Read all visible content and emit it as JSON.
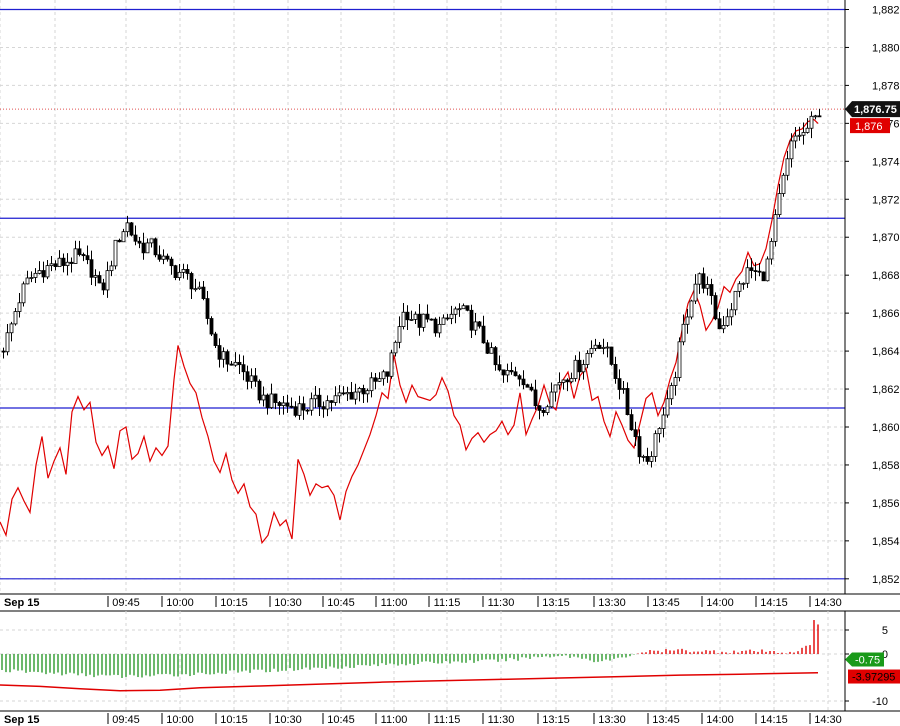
{
  "colors": {
    "level_line": "#1f1fd0",
    "up_candle": "#ffffff",
    "down_candle": "#000000",
    "overlay_line": "#e00000",
    "positive_hist": "#e00000",
    "negative_hist": "#2e9a2e",
    "grid": "#d6d6d6",
    "last_price_tag": "#111111",
    "overlay_tag": "#e00000",
    "osc_tag": "#1a9a1a"
  },
  "chart_data": [
    {
      "type": "candlestick",
      "date_label": "Sep 15",
      "x_ticks": [
        "09:45",
        "10:00",
        "10:15",
        "10:30",
        "10:45",
        "11:00",
        "11:15",
        "11:30",
        "13:15",
        "13:30",
        "13:45",
        "14:00",
        "14:15",
        "14:30"
      ],
      "y_ticks": [
        "1,852",
        "1,854",
        "1,856",
        "1,858",
        "1,860",
        "1,862",
        "1,864",
        "1,866",
        "1,868",
        "1,870",
        "1,872",
        "1,874",
        "1,876",
        "1,878",
        "1,880",
        "1,882"
      ],
      "ylim": [
        1851.2,
        1882.5
      ],
      "grid": true,
      "horizontal_levels": [
        1882,
        1871,
        1861,
        1852
      ],
      "last_price": 1876.75,
      "last_price_label": "1,876.75",
      "overlay_label": "1,876",
      "close_path": [
        [
          0,
          1864
        ],
        [
          8,
          1865
        ],
        [
          16,
          1866.5
        ],
        [
          24,
          1867.5
        ],
        [
          32,
          1868
        ],
        [
          40,
          1868.3
        ],
        [
          50,
          1868.5
        ],
        [
          60,
          1868.6
        ],
        [
          68,
          1868.8
        ],
        [
          76,
          1869
        ],
        [
          84,
          1868.6
        ],
        [
          92,
          1868.2
        ],
        [
          98,
          1867.2
        ],
        [
          104,
          1867.6
        ],
        [
          110,
          1868.8
        ],
        [
          116,
          1869.8
        ],
        [
          120,
          1870.3
        ],
        [
          126,
          1870.7
        ],
        [
          132,
          1870
        ],
        [
          140,
          1869.5
        ],
        [
          148,
          1869.6
        ],
        [
          156,
          1869.2
        ],
        [
          164,
          1868.6
        ],
        [
          172,
          1868.3
        ],
        [
          180,
          1868.1
        ],
        [
          188,
          1867.8
        ],
        [
          196,
          1867.2
        ],
        [
          202,
          1866.4
        ],
        [
          208,
          1865.4
        ],
        [
          214,
          1864.3
        ],
        [
          222,
          1863.6
        ],
        [
          230,
          1863.4
        ],
        [
          238,
          1863.2
        ],
        [
          246,
          1862.6
        ],
        [
          254,
          1862
        ],
        [
          262,
          1861.5
        ],
        [
          270,
          1861.3
        ],
        [
          280,
          1861.2
        ],
        [
          290,
          1861.1
        ],
        [
          300,
          1861
        ],
        [
          310,
          1861.2
        ],
        [
          320,
          1861.3
        ],
        [
          330,
          1861.4
        ],
        [
          340,
          1861.6
        ],
        [
          350,
          1861.8
        ],
        [
          360,
          1862
        ],
        [
          370,
          1862.2
        ],
        [
          378,
          1862.4
        ],
        [
          386,
          1862.8
        ],
        [
          392,
          1864
        ],
        [
          398,
          1865.5
        ],
        [
          404,
          1866.2
        ],
        [
          410,
          1865.8
        ],
        [
          416,
          1865.5
        ],
        [
          424,
          1865.6
        ],
        [
          432,
          1865.4
        ],
        [
          440,
          1865.2
        ],
        [
          448,
          1865.8
        ],
        [
          456,
          1866.2
        ],
        [
          464,
          1865.9
        ],
        [
          472,
          1865.4
        ],
        [
          480,
          1864.8
        ],
        [
          488,
          1864
        ],
        [
          494,
          1863.2
        ],
        [
          500,
          1862.6
        ],
        [
          508,
          1862.8
        ],
        [
          516,
          1862.9
        ],
        [
          524,
          1862.5
        ],
        [
          530,
          1861.6
        ],
        [
          536,
          1861
        ],
        [
          542,
          1861.2
        ],
        [
          550,
          1861.8
        ],
        [
          556,
          1862.4
        ],
        [
          564,
          1862.7
        ],
        [
          572,
          1863
        ],
        [
          580,
          1863.4
        ],
        [
          588,
          1864
        ],
        [
          596,
          1864.6
        ],
        [
          602,
          1864.3
        ],
        [
          608,
          1863.6
        ],
        [
          614,
          1862.8
        ],
        [
          620,
          1862
        ],
        [
          626,
          1860.8
        ],
        [
          632,
          1859.8
        ],
        [
          640,
          1858.5
        ],
        [
          646,
          1858.3
        ],
        [
          652,
          1859
        ],
        [
          658,
          1860.2
        ],
        [
          664,
          1860.8
        ],
        [
          670,
          1861.8
        ],
        [
          676,
          1863.5
        ],
        [
          682,
          1865.2
        ],
        [
          688,
          1866.6
        ],
        [
          694,
          1867.6
        ],
        [
          700,
          1867.9
        ],
        [
          706,
          1867.2
        ],
        [
          712,
          1866.2
        ],
        [
          718,
          1865.2
        ],
        [
          724,
          1865.8
        ],
        [
          730,
          1866.4
        ],
        [
          736,
          1867.2
        ],
        [
          742,
          1867.8
        ],
        [
          748,
          1868.3
        ],
        [
          754,
          1868.1
        ],
        [
          760,
          1867.9
        ],
        [
          766,
          1868.6
        ],
        [
          772,
          1870.2
        ],
        [
          778,
          1872
        ],
        [
          784,
          1873.5
        ],
        [
          790,
          1874.8
        ],
        [
          796,
          1875.5
        ],
        [
          802,
          1875.4
        ],
        [
          808,
          1875.9
        ],
        [
          814,
          1876.2
        ],
        [
          818,
          1876.75
        ]
      ],
      "overlay_series": [
        [
          0,
          1855
        ],
        [
          6,
          1854.3
        ],
        [
          12,
          1856.2
        ],
        [
          18,
          1856.8
        ],
        [
          24,
          1856.1
        ],
        [
          30,
          1855.5
        ],
        [
          36,
          1858
        ],
        [
          42,
          1859.5
        ],
        [
          48,
          1857.3
        ],
        [
          54,
          1858.2
        ],
        [
          60,
          1858.9
        ],
        [
          66,
          1857.5
        ],
        [
          72,
          1860.8
        ],
        [
          78,
          1861.6
        ],
        [
          84,
          1860.9
        ],
        [
          90,
          1861.3
        ],
        [
          96,
          1859.2
        ],
        [
          102,
          1858.5
        ],
        [
          108,
          1859
        ],
        [
          114,
          1857.8
        ],
        [
          120,
          1859.8
        ],
        [
          126,
          1860
        ],
        [
          132,
          1858.3
        ],
        [
          138,
          1858.6
        ],
        [
          144,
          1859.5
        ],
        [
          150,
          1858.2
        ],
        [
          156,
          1858.9
        ],
        [
          162,
          1858.5
        ],
        [
          168,
          1859
        ],
        [
          174,
          1862.5
        ],
        [
          178,
          1864.3
        ],
        [
          184,
          1863.2
        ],
        [
          190,
          1862.3
        ],
        [
          196,
          1861.8
        ],
        [
          202,
          1860.5
        ],
        [
          208,
          1859.5
        ],
        [
          214,
          1858.2
        ],
        [
          220,
          1857.6
        ],
        [
          226,
          1858.6
        ],
        [
          232,
          1857.2
        ],
        [
          238,
          1856.5
        ],
        [
          244,
          1857
        ],
        [
          250,
          1855.8
        ],
        [
          256,
          1855.4
        ],
        [
          262,
          1853.9
        ],
        [
          268,
          1854.3
        ],
        [
          274,
          1855.5
        ],
        [
          280,
          1854.8
        ],
        [
          286,
          1855.1
        ],
        [
          292,
          1854.1
        ],
        [
          298,
          1858.3
        ],
        [
          304,
          1857.5
        ],
        [
          310,
          1856.4
        ],
        [
          316,
          1857
        ],
        [
          322,
          1856.8
        ],
        [
          328,
          1856.9
        ],
        [
          334,
          1856.4
        ],
        [
          340,
          1855.1
        ],
        [
          346,
          1856.6
        ],
        [
          352,
          1857.4
        ],
        [
          358,
          1858
        ],
        [
          364,
          1858.8
        ],
        [
          370,
          1859.6
        ],
        [
          376,
          1860.6
        ],
        [
          382,
          1861.8
        ],
        [
          388,
          1861.5
        ],
        [
          394,
          1863.8
        ],
        [
          400,
          1862.2
        ],
        [
          406,
          1861.3
        ],
        [
          412,
          1862.2
        ],
        [
          418,
          1861.6
        ],
        [
          424,
          1861.5
        ],
        [
          430,
          1861.4
        ],
        [
          436,
          1861.7
        ],
        [
          442,
          1862.6
        ],
        [
          448,
          1861.9
        ],
        [
          454,
          1860.6
        ],
        [
          460,
          1860.1
        ],
        [
          466,
          1858.8
        ],
        [
          472,
          1859.4
        ],
        [
          478,
          1859.7
        ],
        [
          484,
          1859.2
        ],
        [
          490,
          1859.6
        ],
        [
          496,
          1859.8
        ],
        [
          502,
          1860.3
        ],
        [
          508,
          1859.6
        ],
        [
          514,
          1860.1
        ],
        [
          520,
          1861.8
        ],
        [
          526,
          1859.6
        ],
        [
          532,
          1860.4
        ],
        [
          538,
          1861.1
        ],
        [
          544,
          1862.2
        ],
        [
          550,
          1861.2
        ],
        [
          556,
          1860.9
        ],
        [
          562,
          1862.4
        ],
        [
          568,
          1862.9
        ],
        [
          574,
          1861.5
        ],
        [
          580,
          1862.7
        ],
        [
          586,
          1863.1
        ],
        [
          592,
          1861.4
        ],
        [
          598,
          1861.6
        ],
        [
          604,
          1860.3
        ],
        [
          610,
          1859.5
        ],
        [
          616,
          1860.8
        ],
        [
          622,
          1860.1
        ],
        [
          628,
          1859.3
        ],
        [
          634,
          1858.9
        ],
        [
          640,
          1860.2
        ],
        [
          646,
          1861.5
        ],
        [
          652,
          1861.8
        ],
        [
          658,
          1860.6
        ],
        [
          664,
          1861.3
        ],
        [
          670,
          1862.5
        ],
        [
          676,
          1863.4
        ],
        [
          682,
          1865.1
        ],
        [
          688,
          1866.5
        ],
        [
          694,
          1867.2
        ],
        [
          700,
          1866.4
        ],
        [
          706,
          1865.1
        ],
        [
          712,
          1865.6
        ],
        [
          718,
          1866.3
        ],
        [
          724,
          1867.4
        ],
        [
          730,
          1867.1
        ],
        [
          736,
          1867.8
        ],
        [
          742,
          1868.2
        ],
        [
          748,
          1869.2
        ],
        [
          754,
          1868.5
        ],
        [
          760,
          1868.6
        ],
        [
          766,
          1869.4
        ],
        [
          772,
          1870.9
        ],
        [
          778,
          1872.7
        ],
        [
          784,
          1874.2
        ],
        [
          790,
          1875.1
        ],
        [
          796,
          1875.6
        ],
        [
          802,
          1875.7
        ],
        [
          808,
          1876.1
        ],
        [
          814,
          1876.2
        ],
        [
          818,
          1876
        ]
      ]
    },
    {
      "type": "bar",
      "y_ticks": [
        "5",
        "0",
        "-10"
      ],
      "ylim": [
        -12,
        7.5
      ],
      "grid": true,
      "last_value_label": "-0.75",
      "signal_label": "-3.97295",
      "hist_envelope": [
        [
          0,
          -3.5
        ],
        [
          60,
          -4.2
        ],
        [
          120,
          -4.8
        ],
        [
          160,
          -4.6
        ],
        [
          200,
          -4.2
        ],
        [
          260,
          -3.6
        ],
        [
          320,
          -3
        ],
        [
          380,
          -2.3
        ],
        [
          440,
          -1.8
        ],
        [
          500,
          -1.4
        ],
        [
          540,
          -0.6
        ],
        [
          560,
          -0.3
        ],
        [
          580,
          -0.8
        ],
        [
          600,
          -1.6
        ],
        [
          620,
          -1
        ],
        [
          640,
          0.4
        ],
        [
          680,
          0.8
        ],
        [
          720,
          0.5
        ],
        [
          760,
          0.6
        ],
        [
          780,
          0.3
        ],
        [
          800,
          0.7
        ],
        [
          818,
          3
        ]
      ],
      "signal_line": [
        [
          0,
          -6.6
        ],
        [
          40,
          -6.9
        ],
        [
          80,
          -7.4
        ],
        [
          120,
          -7.8
        ],
        [
          160,
          -7.7
        ],
        [
          200,
          -7.2
        ],
        [
          260,
          -6.8
        ],
        [
          320,
          -6.4
        ],
        [
          380,
          -6
        ],
        [
          440,
          -5.7
        ],
        [
          500,
          -5.4
        ],
        [
          560,
          -5.1
        ],
        [
          620,
          -4.8
        ],
        [
          680,
          -4.5
        ],
        [
          740,
          -4.3
        ],
        [
          818,
          -3.97
        ]
      ]
    }
  ]
}
